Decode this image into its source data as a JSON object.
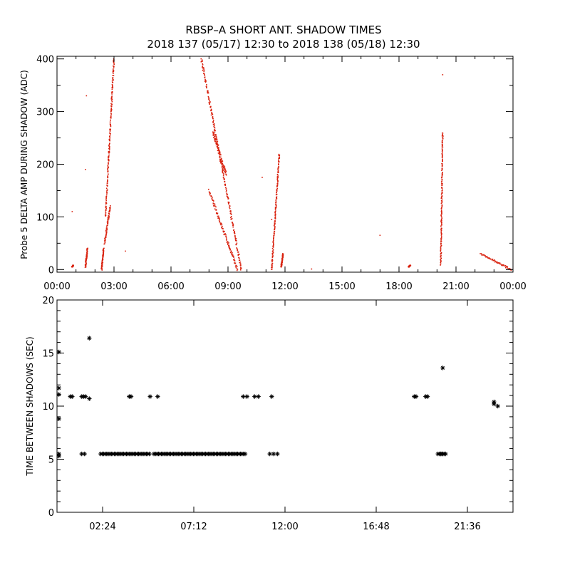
{
  "figure": {
    "title_line1": "RBSP–A SHORT ANT. SHADOW TIMES",
    "title_line2": "2018 137 (05/17) 12:30 to 2018 138 (05/18) 12:30"
  },
  "colors": {
    "top_series": "#d9220f",
    "bottom_series": "#000000",
    "axes": "#000000",
    "background": "#ffffff"
  },
  "chart_data": [
    {
      "type": "scatter",
      "ylabel": "Probe 5 DELTA AMP DURING SHADOW (ADC)",
      "x_unit": "hours since 00:00",
      "xlim": [
        0,
        24
      ],
      "ylim": [
        -5,
        405
      ],
      "x_ticks": [
        0,
        3,
        6,
        9,
        12,
        15,
        18,
        21,
        24
      ],
      "x_tick_labels": [
        "00:00",
        "03:00",
        "06:00",
        "09:00",
        "12:00",
        "15:00",
        "18:00",
        "21:00",
        "00:00"
      ],
      "y_ticks": [
        0,
        100,
        200,
        300,
        400
      ],
      "y_tick_labels": [
        "0",
        "100",
        "200",
        "300",
        "400"
      ],
      "marker": "dot",
      "color": "#d9220f",
      "segments": [
        {
          "from": [
            0.8,
            5
          ],
          "to": [
            0.85,
            8
          ],
          "spread": 1
        },
        {
          "from": [
            1.5,
            5
          ],
          "to": [
            1.6,
            40
          ],
          "spread": 2
        },
        {
          "from": [
            2.35,
            0
          ],
          "to": [
            2.45,
            40
          ],
          "spread": 2
        },
        {
          "from": [
            2.5,
            50
          ],
          "to": [
            2.8,
            120
          ],
          "spread": 4
        },
        {
          "from": [
            2.55,
            100
          ],
          "to": [
            3.0,
            400
          ],
          "spread": 5
        },
        {
          "from": [
            7.6,
            400
          ],
          "to": [
            9.7,
            0
          ],
          "spread": 8
        },
        {
          "from": [
            8.0,
            150
          ],
          "to": [
            9.5,
            0
          ],
          "spread": 6
        },
        {
          "from": [
            8.2,
            260
          ],
          "to": [
            8.9,
            180
          ],
          "spread": 10
        },
        {
          "from": [
            11.3,
            0
          ],
          "to": [
            11.7,
            220
          ],
          "spread": 3
        },
        {
          "from": [
            11.8,
            5
          ],
          "to": [
            11.9,
            30
          ],
          "spread": 1
        },
        {
          "from": [
            18.5,
            5
          ],
          "to": [
            18.6,
            8
          ],
          "spread": 1
        },
        {
          "from": [
            20.2,
            10
          ],
          "to": [
            20.3,
            260
          ],
          "spread": 3
        },
        {
          "from": [
            22.3,
            30
          ],
          "to": [
            23.9,
            0
          ],
          "spread": 3
        }
      ],
      "isolated_points": [
        [
          0.8,
          110
        ],
        [
          1.55,
          330
        ],
        [
          1.5,
          190
        ],
        [
          3.6,
          35
        ],
        [
          10.8,
          175
        ],
        [
          17.0,
          65
        ],
        [
          11.3,
          95
        ],
        [
          13.4,
          1
        ],
        [
          20.3,
          370
        ]
      ]
    },
    {
      "type": "scatter",
      "ylabel": "TIME BETWEEN SHADOWS (SEC)",
      "x_unit": "hours since 00:00",
      "xlim": [
        0,
        24
      ],
      "ylim": [
        0,
        20
      ],
      "x_ticks": [
        2.4,
        7.2,
        12.0,
        16.8,
        21.6
      ],
      "x_tick_labels": [
        "02:24",
        "07:12",
        "12:00",
        "16:48",
        "21:36"
      ],
      "y_ticks": [
        0,
        5,
        10,
        15,
        20
      ],
      "y_tick_labels": [
        "0",
        "5",
        "10",
        "15",
        "20"
      ],
      "marker": "asterisk",
      "color": "#000000",
      "points": [
        [
          0.1,
          15.1
        ],
        [
          0.1,
          11.7
        ],
        [
          0.1,
          11.1
        ],
        [
          0.1,
          8.8
        ],
        [
          0.1,
          5.5
        ],
        [
          0.1,
          5.3
        ],
        [
          0.7,
          10.9
        ],
        [
          0.8,
          10.9
        ],
        [
          1.3,
          10.9
        ],
        [
          1.4,
          10.9
        ],
        [
          1.5,
          10.9
        ],
        [
          1.3,
          5.5
        ],
        [
          1.45,
          5.5
        ],
        [
          1.7,
          16.4
        ],
        [
          1.7,
          10.7
        ],
        [
          3.8,
          10.9
        ],
        [
          3.9,
          10.9
        ],
        [
          4.9,
          10.9
        ],
        [
          5.3,
          10.9
        ],
        [
          9.8,
          10.9
        ],
        [
          10.0,
          10.9
        ],
        [
          10.4,
          10.9
        ],
        [
          10.6,
          10.9
        ],
        [
          11.3,
          10.9
        ],
        [
          18.8,
          10.9
        ],
        [
          18.9,
          10.9
        ],
        [
          19.4,
          10.9
        ],
        [
          19.5,
          10.9
        ],
        [
          20.2,
          5.5
        ],
        [
          20.3,
          5.5
        ],
        [
          20.3,
          13.6
        ],
        [
          23.0,
          10.4
        ],
        [
          23.0,
          10.2
        ],
        [
          23.2,
          10.0
        ],
        [
          11.2,
          5.5
        ],
        [
          11.4,
          5.5
        ],
        [
          11.6,
          5.5
        ]
      ],
      "bands": [
        {
          "from": 2.3,
          "to": 4.9,
          "y": 5.5,
          "step": 0.08
        },
        {
          "from": 5.1,
          "to": 9.9,
          "y": 5.5,
          "step": 0.08
        },
        {
          "from": 20.05,
          "to": 20.45,
          "y": 5.5,
          "step": 0.08
        }
      ]
    }
  ]
}
